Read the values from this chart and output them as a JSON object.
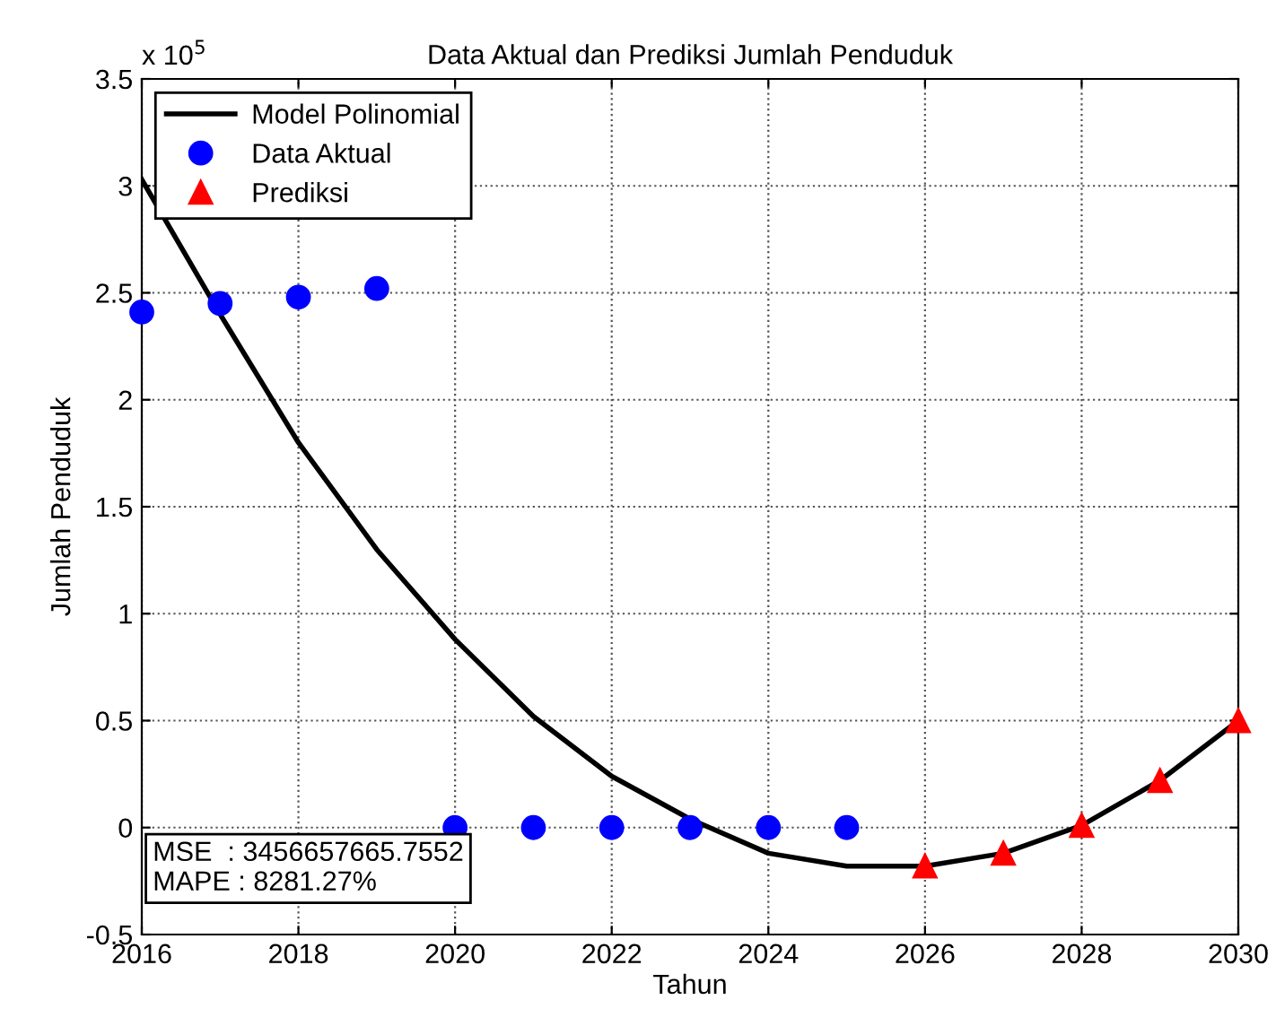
{
  "chart_data": {
    "type": "line",
    "title": "Data Aktual dan Prediksi Jumlah Penduduk",
    "xlabel": "Tahun",
    "ylabel": "Jumlah Penduduk",
    "annotations": [
      "x 10$^{5}$",
      "MSE  : 3456657665.7552\nMAPE : 8281.27%"
    ],
    "series": [
      {
        "name": "Model Polinomial",
        "color": "#000000",
        "marker": "none",
        "line_style": "solid",
        "x": [
          2016,
          2017,
          2018,
          2019,
          2020,
          2021,
          2022,
          2023,
          2024,
          2025,
          2026,
          2027,
          2028,
          2029,
          2030
        ],
        "values": [
          3.03,
          2.4,
          1.8,
          1.3,
          0.88,
          0.52,
          0.24,
          0.04,
          -0.12,
          -0.18,
          -0.18,
          -0.12,
          0.01,
          0.22,
          0.5
        ]
      },
      {
        "name": "Data Aktual",
        "type": "scatter",
        "color": "#0000ff",
        "marker": "circle",
        "x": [
          2016,
          2017,
          2018,
          2019,
          2020,
          2021,
          2022,
          2023,
          2024,
          2025
        ],
        "values": [
          2.41,
          2.45,
          2.48,
          2.52,
          0,
          0,
          0,
          0,
          0,
          0
        ]
      },
      {
        "name": "Prediksi",
        "type": "scatter",
        "color": "#ff0000",
        "marker": "triangle",
        "x": [
          2026,
          2027,
          2028,
          2029,
          2030
        ],
        "values": [
          -0.18,
          -0.12,
          0.01,
          0.22,
          0.5
        ]
      }
    ],
    "xlim": [
      2016,
      2030
    ],
    "xticks": [
      2016,
      2018,
      2020,
      2022,
      2024,
      2026,
      2028,
      2030
    ],
    "ylim": [
      -0.5,
      3.5
    ],
    "yticks": [
      -0.5,
      0,
      0.5,
      1,
      1.5,
      2,
      2.5,
      3,
      3.5
    ],
    "grid": true,
    "legend": "top left"
  }
}
